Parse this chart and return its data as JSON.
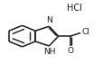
{
  "bg_color": "#ffffff",
  "line_color": "#1a1a1a",
  "line_width": 1.1,
  "font_size": 6.5,
  "figsize": [
    1.15,
    0.81
  ],
  "dpi": 100,
  "hcl_text": "HCl",
  "n_label": "N",
  "nh_label": "NH",
  "cl_label": "Cl",
  "o_label": "O"
}
